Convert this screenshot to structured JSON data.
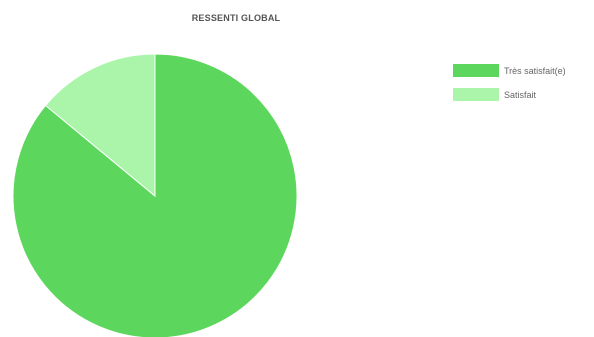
{
  "chart_data": {
    "type": "pie",
    "title": "RESSENTI GLOBAL",
    "slices": [
      {
        "label": "Très satisfait(e)",
        "value": 86,
        "color": "#5cd65c"
      },
      {
        "label": "Satisfait",
        "value": 14,
        "color": "#aaf5aa"
      }
    ],
    "legend": {
      "position": "right"
    }
  }
}
